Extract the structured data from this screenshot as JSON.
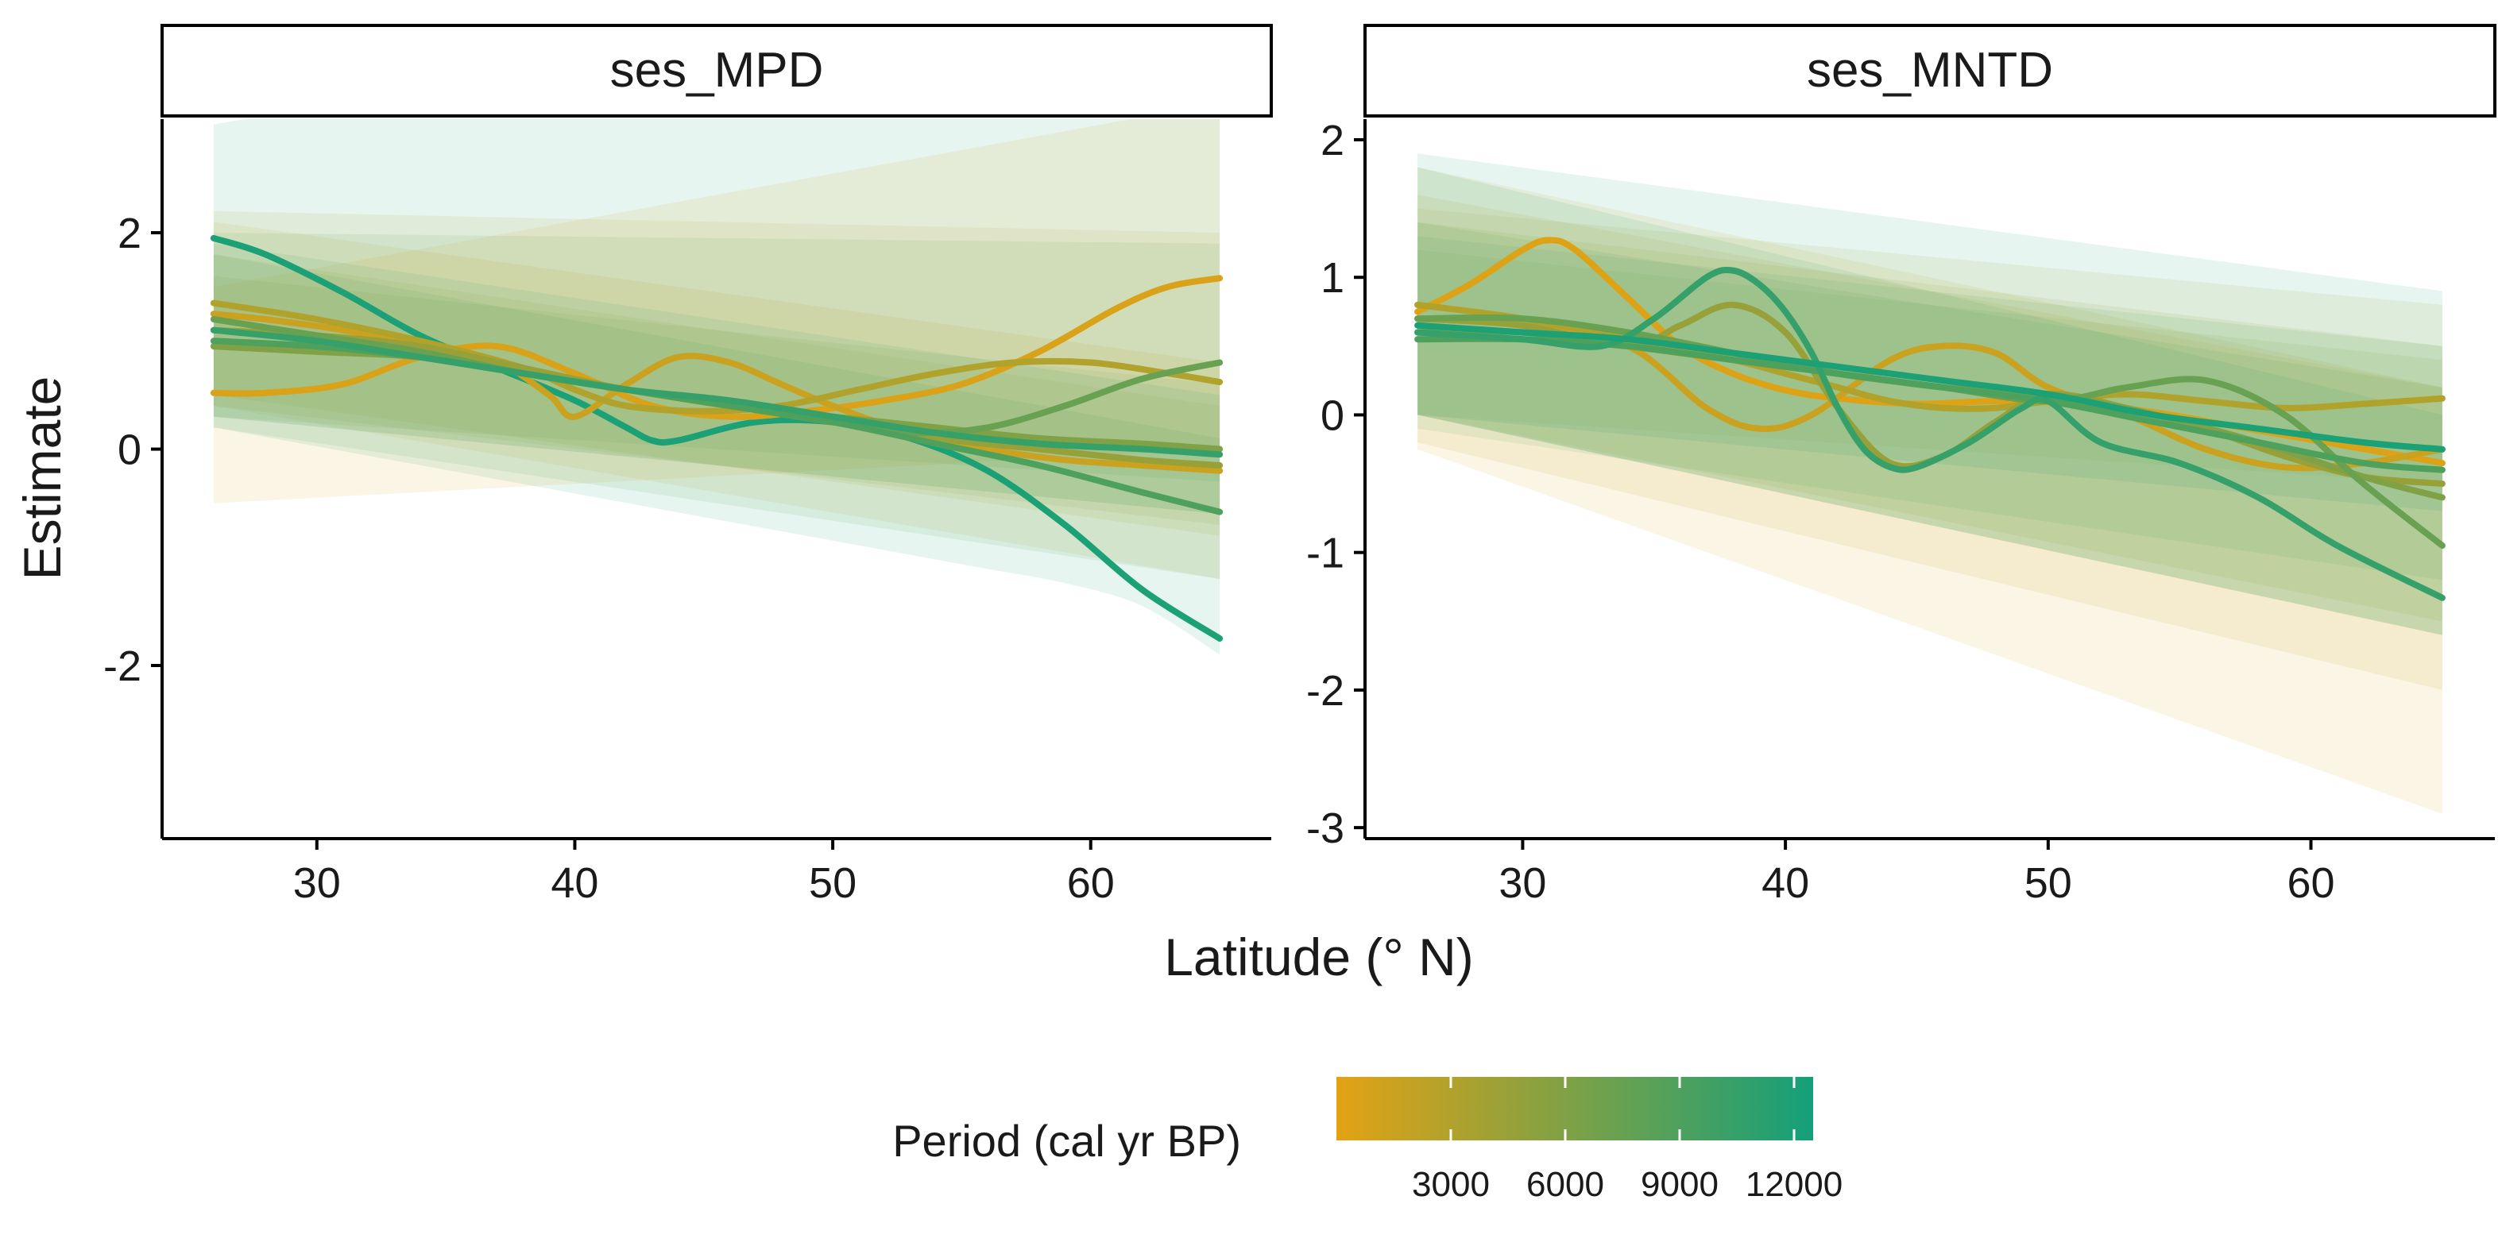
{
  "axis_titles": {
    "x": "Latitude (° N)",
    "y": "Estimate"
  },
  "legend": {
    "title": "Period (cal yr BP)",
    "range": [
      0,
      12500
    ],
    "breaks": [
      3000,
      6000,
      9000,
      12000
    ],
    "break_labels": [
      "3000",
      "6000",
      "9000",
      "12000"
    ],
    "color_low": "#E3A214",
    "color_high": "#14A07A"
  },
  "colors": {
    "low": "#E3A214",
    "high": "#14A07A",
    "axis": "#000000",
    "strip_fill": "#ffffff"
  },
  "chart_data": [
    {
      "type": "line",
      "panel": "ses_MPD",
      "xlabel": "Latitude (° N)",
      "ylabel": "Estimate",
      "xlim": [
        24,
        67
      ],
      "ylim": [
        -3.6,
        3.05
      ],
      "xticks": [
        30,
        40,
        50,
        60
      ],
      "xtick_labels": [
        "30",
        "40",
        "50",
        "60"
      ],
      "yticks": [
        -2,
        0,
        2
      ],
      "ytick_labels": [
        "-2",
        "0",
        "2"
      ],
      "grid": false,
      "series": [
        {
          "period": 12000,
          "x": [
            26,
            28,
            31,
            34,
            37,
            40,
            42,
            43,
            44,
            47,
            50,
            53,
            56,
            59,
            62,
            65
          ],
          "y": [
            1.95,
            1.8,
            1.45,
            1.05,
            0.75,
            0.45,
            0.2,
            0.08,
            0.08,
            0.25,
            0.25,
            0.1,
            -0.2,
            -0.7,
            -1.3,
            -1.75
          ],
          "ci": [
            [
              0.2,
              3.0
            ],
            [
              -1.5,
              4.6
            ]
          ]
        },
        {
          "period": 600,
          "x": [
            26,
            28,
            31,
            34,
            37,
            40,
            43,
            46,
            49,
            52,
            55,
            58,
            61,
            63,
            65
          ],
          "y": [
            0.52,
            0.52,
            0.6,
            0.85,
            0.95,
            0.7,
            0.4,
            0.3,
            0.35,
            0.45,
            0.6,
            0.9,
            1.3,
            1.5,
            1.58
          ],
          "ci": [
            [
              -0.5,
              1.5
            ],
            [
              0.0,
              3.2
            ]
          ]
        },
        {
          "period": 1500,
          "x": [
            26,
            28,
            31,
            34,
            37,
            39,
            40,
            42,
            44,
            46,
            48,
            50,
            53,
            56,
            59,
            62,
            65
          ],
          "y": [
            1.25,
            1.2,
            1.1,
            0.95,
            0.8,
            0.5,
            0.3,
            0.6,
            0.85,
            0.8,
            0.6,
            0.4,
            0.15,
            0.0,
            -0.1,
            -0.15,
            -0.2
          ],
          "ci": [
            [
              0.4,
              2.1
            ],
            [
              -1.2,
              0.8
            ]
          ]
        },
        {
          "period": 3000,
          "x": [
            26,
            30,
            34,
            38,
            40,
            42,
            45,
            48,
            51,
            54,
            57,
            60,
            63,
            65
          ],
          "y": [
            1.35,
            1.2,
            1.0,
            0.75,
            0.55,
            0.4,
            0.35,
            0.4,
            0.55,
            0.7,
            0.8,
            0.8,
            0.7,
            0.62
          ],
          "ci": [
            [
              0.5,
              2.2
            ],
            [
              -0.8,
              2.0
            ]
          ]
        },
        {
          "period": 4500,
          "x": [
            26,
            30,
            34,
            38,
            42,
            46,
            50,
            54,
            58,
            62,
            65
          ],
          "y": [
            1.1,
            1.05,
            0.95,
            0.75,
            0.55,
            0.4,
            0.25,
            0.1,
            0.0,
            -0.1,
            -0.15
          ],
          "ci": [
            [
              0.4,
              1.8
            ],
            [
              -0.7,
              0.4
            ]
          ]
        },
        {
          "period": 6000,
          "x": [
            26,
            30,
            34,
            38,
            42,
            46,
            50,
            54,
            58,
            62,
            65
          ],
          "y": [
            0.95,
            0.9,
            0.85,
            0.7,
            0.55,
            0.4,
            0.3,
            0.2,
            0.1,
            0.05,
            0.0
          ],
          "ci": [
            [
              0.3,
              1.6
            ],
            [
              -0.6,
              0.6
            ]
          ]
        },
        {
          "period": 7500,
          "x": [
            26,
            30,
            34,
            38,
            42,
            46,
            50,
            53,
            56,
            59,
            62,
            65
          ],
          "y": [
            1.2,
            1.05,
            0.9,
            0.7,
            0.55,
            0.4,
            0.25,
            0.15,
            0.2,
            0.4,
            0.65,
            0.8
          ],
          "ci": [
            [
              0.3,
              2.0
            ],
            [
              -0.3,
              1.9
            ]
          ]
        },
        {
          "period": 9000,
          "x": [
            26,
            30,
            34,
            38,
            42,
            46,
            50,
            54,
            58,
            62,
            65
          ],
          "y": [
            1.0,
            0.95,
            0.85,
            0.7,
            0.55,
            0.4,
            0.25,
            0.05,
            -0.15,
            -0.4,
            -0.58
          ],
          "ci": [
            [
              0.2,
              1.8
            ],
            [
              -1.2,
              0.1
            ]
          ]
        },
        {
          "period": 10500,
          "x": [
            26,
            30,
            34,
            38,
            42,
            46,
            50,
            54,
            58,
            62,
            65
          ],
          "y": [
            1.1,
            1.0,
            0.85,
            0.7,
            0.55,
            0.45,
            0.3,
            0.15,
            0.05,
            0.0,
            -0.05
          ],
          "ci": [
            [
              0.3,
              1.9
            ],
            [
              -0.6,
              0.5
            ]
          ]
        }
      ]
    },
    {
      "type": "line",
      "panel": "ses_MNTD",
      "xlabel": "Latitude (° N)",
      "ylabel": "Estimate",
      "xlim": [
        24,
        67
      ],
      "ylim": [
        -3.08,
        2.15
      ],
      "xticks": [
        30,
        40,
        50,
        60
      ],
      "xtick_labels": [
        "30",
        "40",
        "50",
        "60"
      ],
      "yticks": [
        -3,
        -2,
        -1,
        0,
        1,
        2
      ],
      "ytick_labels": [
        "-3",
        "-2",
        "-1",
        "0",
        "1",
        "2"
      ],
      "grid": false,
      "series": [
        {
          "period": 300,
          "x": [
            26,
            28,
            30,
            31,
            32,
            34,
            36,
            38,
            40,
            42,
            45,
            48,
            51,
            54,
            57,
            60,
            63,
            65
          ],
          "y": [
            0.75,
            0.95,
            1.2,
            1.27,
            1.2,
            0.85,
            0.5,
            0.3,
            0.18,
            0.12,
            0.08,
            0.1,
            0.08,
            0.02,
            -0.08,
            -0.18,
            -0.28,
            -0.35
          ],
          "ci": [
            [
              -0.25,
              1.8
            ],
            [
              -2.9,
              0.2
            ]
          ]
        },
        {
          "period": 1500,
          "x": [
            26,
            30,
            34,
            37,
            39,
            41,
            44,
            46,
            48,
            50,
            53,
            56,
            59,
            62,
            65
          ],
          "y": [
            0.7,
            0.65,
            0.5,
            0.05,
            -0.1,
            0.0,
            0.4,
            0.5,
            0.45,
            0.2,
            0.0,
            -0.25,
            -0.38,
            -0.35,
            -0.25
          ],
          "ci": [
            [
              -0.2,
              1.6
            ],
            [
              -2.0,
              0.2
            ]
          ]
        },
        {
          "period": 3000,
          "x": [
            26,
            30,
            34,
            38,
            40,
            42,
            44,
            46,
            48,
            50,
            53,
            56,
            59,
            62,
            65
          ],
          "y": [
            0.8,
            0.7,
            0.55,
            0.4,
            0.3,
            0.2,
            0.1,
            0.05,
            0.05,
            0.1,
            0.15,
            0.1,
            0.05,
            0.08,
            0.12
          ],
          "ci": [
            [
              0.0,
              1.5
            ],
            [
              -0.5,
              0.8
            ]
          ]
        },
        {
          "period": 4500,
          "x": [
            26,
            30,
            34,
            36,
            38,
            40,
            42,
            44,
            46,
            48,
            50,
            53,
            56,
            59,
            62,
            65
          ],
          "y": [
            0.7,
            0.65,
            0.5,
            0.65,
            0.8,
            0.6,
            0.05,
            -0.35,
            -0.3,
            -0.05,
            0.15,
            0.05,
            -0.1,
            -0.3,
            -0.45,
            -0.5
          ],
          "ci": [
            [
              0.0,
              1.4
            ],
            [
              -1.5,
              0.5
            ]
          ]
        },
        {
          "period": 6000,
          "x": [
            26,
            30,
            34,
            38,
            42,
            46,
            50,
            54,
            58,
            62,
            65
          ],
          "y": [
            0.6,
            0.6,
            0.5,
            0.4,
            0.3,
            0.2,
            0.15,
            0.0,
            -0.2,
            -0.45,
            -0.6
          ],
          "ci": [
            [
              0.0,
              1.2
            ],
            [
              -1.6,
              0.4
            ]
          ]
        },
        {
          "period": 7500,
          "x": [
            26,
            30,
            34,
            38,
            42,
            46,
            50,
            53,
            56,
            59,
            62,
            65
          ],
          "y": [
            0.7,
            0.7,
            0.6,
            0.45,
            0.3,
            0.2,
            0.1,
            0.2,
            0.25,
            0.0,
            -0.5,
            -0.95
          ],
          "ci": [
            [
              0.0,
              1.4
            ],
            [
              -1.6,
              0.2
            ]
          ]
        },
        {
          "period": 9000,
          "x": [
            26,
            30,
            34,
            38,
            42,
            46,
            50,
            54,
            58,
            62,
            65
          ],
          "y": [
            0.55,
            0.55,
            0.5,
            0.4,
            0.3,
            0.2,
            0.1,
            -0.05,
            -0.2,
            -0.35,
            -0.4
          ],
          "ci": [
            [
              -0.1,
              1.3
            ],
            [
              -1.2,
              0.5
            ]
          ]
        },
        {
          "period": 10500,
          "x": [
            26,
            30,
            33,
            35,
            37,
            38,
            39,
            40,
            41,
            42,
            43,
            44,
            45,
            47,
            49,
            50,
            52,
            55,
            58,
            61,
            65
          ],
          "y": [
            0.6,
            0.55,
            0.5,
            0.7,
            1.0,
            1.05,
            0.95,
            0.75,
            0.45,
            0.05,
            -0.25,
            -0.38,
            -0.38,
            -0.2,
            0.05,
            0.1,
            -0.2,
            -0.35,
            -0.6,
            -0.95,
            -1.33
          ],
          "ci": [
            [
              0.0,
              1.8
            ],
            [
              -1.6,
              0.0
            ]
          ]
        },
        {
          "period": 12000,
          "x": [
            26,
            30,
            34,
            38,
            42,
            46,
            50,
            54,
            58,
            62,
            65
          ],
          "y": [
            0.65,
            0.6,
            0.55,
            0.45,
            0.35,
            0.25,
            0.15,
            0.0,
            -0.1,
            -0.2,
            -0.25
          ],
          "ci": [
            [
              0.0,
              1.9
            ],
            [
              -0.7,
              0.9
            ]
          ]
        }
      ]
    }
  ]
}
